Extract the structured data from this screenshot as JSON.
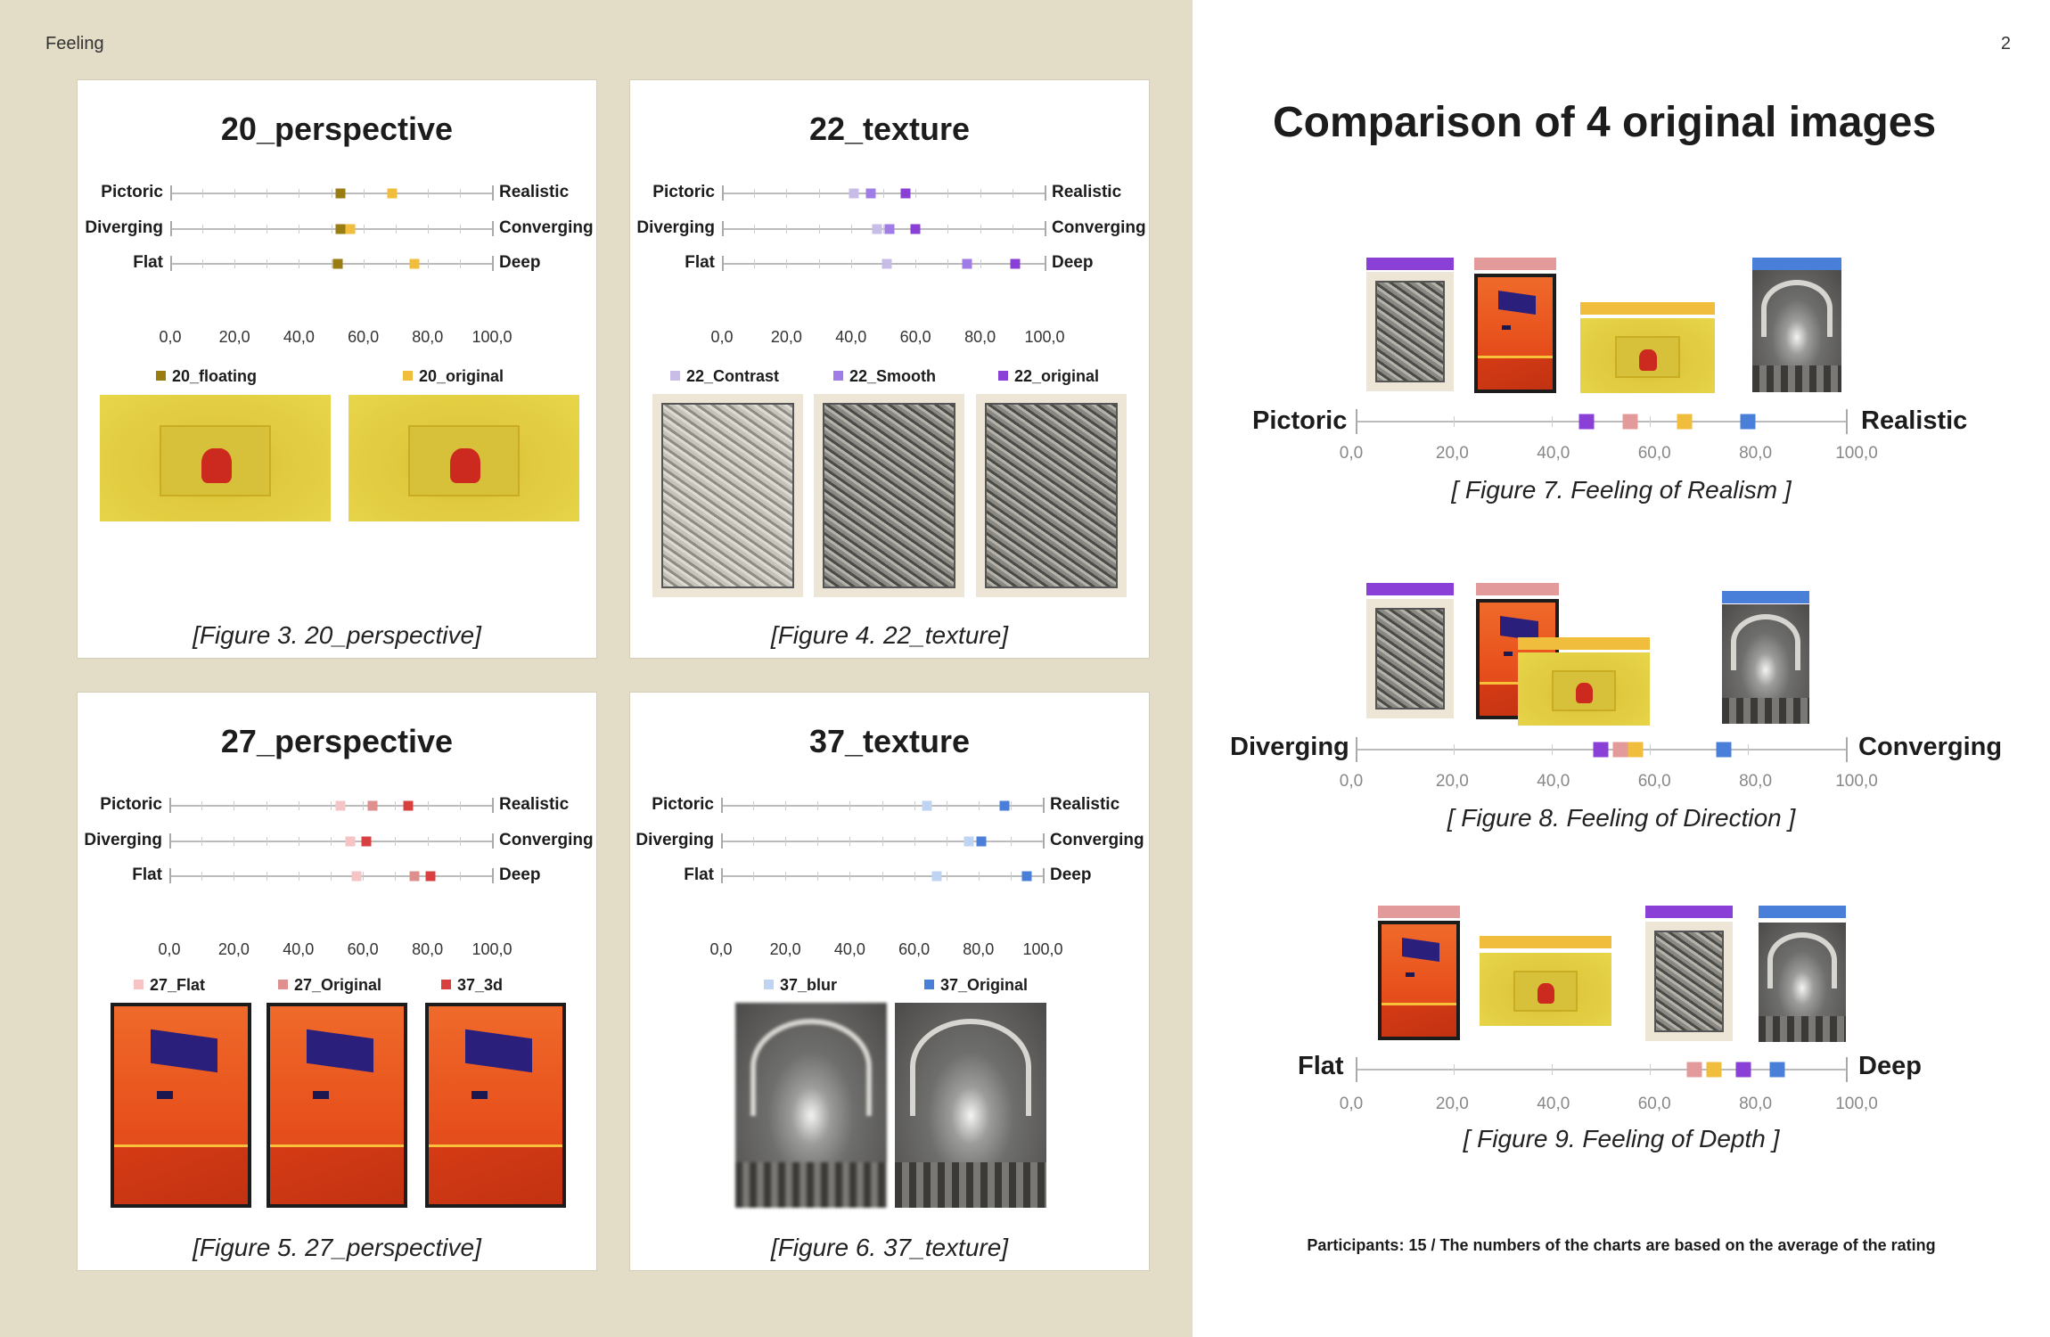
{
  "header": {
    "section": "Feeling",
    "page_number": "2"
  },
  "axes": [
    {
      "left": "Pictoric",
      "right": "Realistic"
    },
    {
      "left": "Diverging",
      "right": "Converging"
    },
    {
      "left": "Flat",
      "right": "Deep"
    }
  ],
  "ticks": [
    "0,0",
    "20,0",
    "40,0",
    "60,0",
    "80,0",
    "100,0"
  ],
  "panels": [
    {
      "title": "20_perspective",
      "caption": "[Figure 3. 20_perspective]",
      "legend": [
        {
          "label": "20_floating",
          "color": "#9a7d10"
        },
        {
          "label": "20_original",
          "color": "#f0bd3c"
        }
      ],
      "values": [
        [
          53,
          69
        ],
        [
          53,
          56
        ],
        [
          52,
          76
        ]
      ]
    },
    {
      "title": "22_texture",
      "caption": "[Figure 4. 22_texture]",
      "legend": [
        {
          "label": "22_Contrast",
          "color": "#c8bde6"
        },
        {
          "label": "22_Smooth",
          "color": "#a07ce6"
        },
        {
          "label": "22_original",
          "color": "#8a3fd6"
        }
      ],
      "values": [
        [
          41,
          46,
          57
        ],
        [
          48,
          52,
          60
        ],
        [
          51,
          76,
          91
        ]
      ]
    },
    {
      "title": "27_perspective",
      "caption": "[Figure 5. 27_perspective]",
      "legend": [
        {
          "label": "27_Flat",
          "color": "#f6c4c4"
        },
        {
          "label": "27_Original",
          "color": "#e08f8f"
        },
        {
          "label": "37_3d",
          "color": "#d84040"
        }
      ],
      "values": [
        [
          53,
          63,
          74
        ],
        [
          56,
          61,
          61
        ],
        [
          58,
          76,
          81
        ]
      ]
    },
    {
      "title": "37_texture",
      "caption": "[Figure 6. 37_texture]",
      "legend": [
        {
          "label": "37_blur",
          "color": "#bfd3f2"
        },
        {
          "label": "37_Original",
          "color": "#4a7fd9"
        }
      ],
      "values": [
        [
          64,
          88
        ],
        [
          77,
          81
        ],
        [
          67,
          95
        ]
      ]
    }
  ],
  "right": {
    "title": "Comparison of 4 original images",
    "colors": {
      "purple": "#8a3fd6",
      "pink": "#e39a9a",
      "yellow": "#f0bd3c",
      "blue": "#4a7fd9"
    },
    "figures": [
      {
        "caption": "[ Figure 7. Feeling of Realism ]",
        "order": [
          "purple",
          "pink",
          "yellow",
          "blue"
        ],
        "values": [
          47,
          56,
          67,
          80
        ]
      },
      {
        "caption": "[ Figure 8. Feeling of Direction ]",
        "order": [
          "purple",
          "pink",
          "yellow",
          "blue"
        ],
        "values": [
          50,
          54,
          57,
          75
        ]
      },
      {
        "caption": "[ Figure 9. Feeling of Depth ]",
        "order": [
          "pink",
          "yellow",
          "purple",
          "blue"
        ],
        "values": [
          69,
          73,
          79,
          86
        ]
      }
    ],
    "footnote": "Participants: 15 / The numbers of the charts are based on the average of the rating"
  },
  "chart_data": [
    {
      "type": "scatter",
      "title": "20_perspective",
      "x_range": [
        0,
        100
      ],
      "categories": [
        "Pictoric-Realistic",
        "Diverging-Converging",
        "Flat-Deep"
      ],
      "series": [
        {
          "name": "20_floating",
          "values": [
            53,
            53,
            52
          ]
        },
        {
          "name": "20_original",
          "values": [
            69,
            56,
            76
          ]
        }
      ]
    },
    {
      "type": "scatter",
      "title": "22_texture",
      "x_range": [
        0,
        100
      ],
      "categories": [
        "Pictoric-Realistic",
        "Diverging-Converging",
        "Flat-Deep"
      ],
      "series": [
        {
          "name": "22_Contrast",
          "values": [
            41,
            48,
            51
          ]
        },
        {
          "name": "22_Smooth",
          "values": [
            46,
            52,
            76
          ]
        },
        {
          "name": "22_original",
          "values": [
            57,
            60,
            91
          ]
        }
      ]
    },
    {
      "type": "scatter",
      "title": "27_perspective",
      "x_range": [
        0,
        100
      ],
      "categories": [
        "Pictoric-Realistic",
        "Diverging-Converging",
        "Flat-Deep"
      ],
      "series": [
        {
          "name": "27_Flat",
          "values": [
            53,
            56,
            58
          ]
        },
        {
          "name": "27_Original",
          "values": [
            63,
            61,
            76
          ]
        },
        {
          "name": "37_3d",
          "values": [
            74,
            61,
            81
          ]
        }
      ]
    },
    {
      "type": "scatter",
      "title": "37_texture",
      "x_range": [
        0,
        100
      ],
      "categories": [
        "Pictoric-Realistic",
        "Diverging-Converging",
        "Flat-Deep"
      ],
      "series": [
        {
          "name": "37_blur",
          "values": [
            64,
            77,
            67
          ]
        },
        {
          "name": "37_Original",
          "values": [
            88,
            81,
            95
          ]
        }
      ]
    },
    {
      "type": "scatter",
      "title": "[ Figure 7. Feeling of Realism ]",
      "x_range": [
        0,
        100
      ],
      "values": [
        47,
        56,
        67,
        80
      ]
    },
    {
      "type": "scatter",
      "title": "[ Figure 8. Feeling of Direction ]",
      "x_range": [
        0,
        100
      ],
      "values": [
        50,
        54,
        57,
        75
      ]
    },
    {
      "type": "scatter",
      "title": "[ Figure 9. Feeling of Depth ]",
      "x_range": [
        0,
        100
      ],
      "values": [
        69,
        73,
        79,
        86
      ]
    }
  ]
}
